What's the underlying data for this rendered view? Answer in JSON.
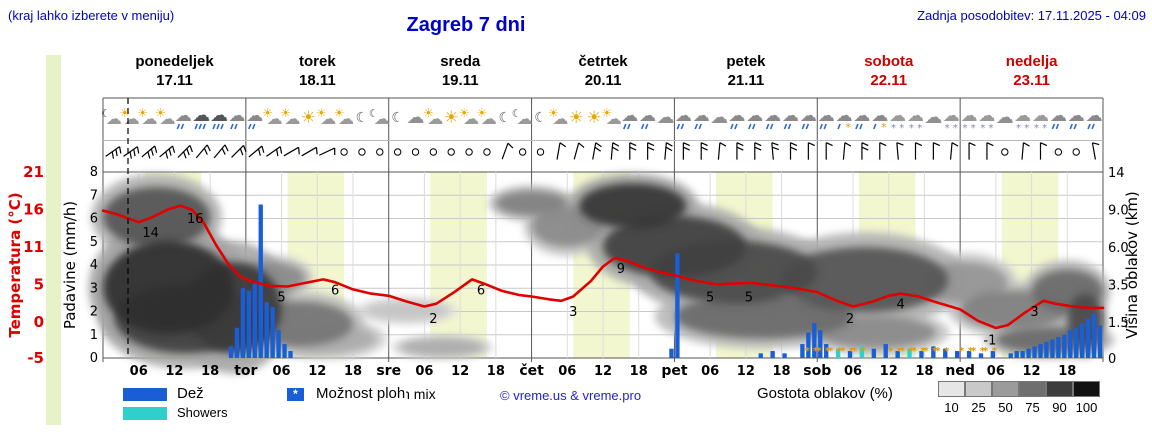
{
  "header": {
    "hint": "(kraj lahko izberete v meniju)",
    "title": "Zagreb 7 dni",
    "updated": "Zadnja posodobitev: 17.11.2025 - 04:09"
  },
  "days": [
    {
      "name": "ponedeljek",
      "date": "17.11",
      "color": "#000000"
    },
    {
      "name": "torek",
      "date": "18.11",
      "color": "#000000"
    },
    {
      "name": "sreda",
      "date": "19.11",
      "color": "#000000"
    },
    {
      "name": "četrtek",
      "date": "20.11",
      "color": "#000000"
    },
    {
      "name": "petek",
      "date": "21.11",
      "color": "#000000"
    },
    {
      "name": "sobota",
      "date": "22.11",
      "color": "#cc0000"
    },
    {
      "name": "nedelja",
      "date": "23.11",
      "color": "#cc0000"
    }
  ],
  "axes": {
    "temp": {
      "title": "Temperatura (°C)",
      "color": "#dd0000",
      "ticks": [
        "21",
        "16",
        "11",
        "5",
        "0",
        "-5"
      ]
    },
    "precip": {
      "title": "Padavine (mm/h)",
      "ticks": [
        "8",
        "7",
        "6",
        "5",
        "4",
        "3",
        "2",
        "1",
        "0"
      ]
    },
    "cloud": {
      "title": "Višina oblakov (km)",
      "ticks": [
        "14",
        "9.0",
        "6.0",
        "3.5",
        "1.5",
        "0"
      ]
    },
    "x": {
      "hour_labels": [
        "06",
        "12",
        "18"
      ],
      "day_abbr": [
        "tor",
        "sre",
        "čet",
        "pet",
        "sob",
        "ned"
      ]
    }
  },
  "legend": {
    "rain": "Dež",
    "showers": "Showers",
    "chance": "Možnost ploh",
    "frozen": "frozen mix",
    "star": "*",
    "cloud_density": "Gostota oblakov (%)",
    "scale": [
      "10",
      "25",
      "50",
      "75",
      "90",
      "100"
    ],
    "scale_colors": [
      "#e6e6e6",
      "#c9c9c9",
      "#9b9b9b",
      "#6f6f6f",
      "#3d3d3d",
      "#121212"
    ],
    "rain_color": "#1a5ed6",
    "showers_color": "#2fd0cc"
  },
  "credit": "© vreme.us & vreme.pro",
  "chart_data": {
    "type": "meteogram: line = temperature (°C), bars = precipitation (mm/h), gray shading = cloud density by height (km), icons = weather per 3h, barbs = wind",
    "x_range_hours": [
      0,
      168
    ],
    "now_hour": 4.2,
    "day_start_hour": 7,
    "day_end_hour": 16.5,
    "temp_axis_range": [
      -5,
      21
    ],
    "precip_axis_range": [
      0,
      8
    ],
    "cloud_height_ticks_km": [
      0,
      1.5,
      3.5,
      6,
      9,
      14
    ],
    "temperature": [
      [
        0,
        15.6
      ],
      [
        2,
        15.2
      ],
      [
        4,
        14.6
      ],
      [
        6,
        14.0
      ],
      [
        8,
        14.6
      ],
      [
        11,
        15.8
      ],
      [
        13,
        16.3
      ],
      [
        15,
        15.7
      ],
      [
        17,
        13.8
      ],
      [
        19,
        10.8
      ],
      [
        21,
        8.2
      ],
      [
        23,
        6.4
      ],
      [
        25,
        5.7
      ],
      [
        28,
        5.1
      ],
      [
        31,
        5.0
      ],
      [
        34,
        5.5
      ],
      [
        37,
        6.0
      ],
      [
        39,
        5.6
      ],
      [
        42,
        4.6
      ],
      [
        45,
        4.0
      ],
      [
        48,
        3.7
      ],
      [
        51,
        2.9
      ],
      [
        54,
        2.2
      ],
      [
        56,
        2.6
      ],
      [
        59,
        4.2
      ],
      [
        62,
        6.0
      ],
      [
        64,
        5.4
      ],
      [
        67,
        4.4
      ],
      [
        70,
        3.8
      ],
      [
        72,
        3.6
      ],
      [
        75,
        3.2
      ],
      [
        77,
        3.0
      ],
      [
        79,
        3.6
      ],
      [
        82,
        5.8
      ],
      [
        84,
        7.8
      ],
      [
        86,
        9.0
      ],
      [
        88,
        8.6
      ],
      [
        91,
        7.6
      ],
      [
        94,
        6.9
      ],
      [
        96,
        6.6
      ],
      [
        99,
        5.9
      ],
      [
        103,
        5.3
      ],
      [
        106,
        5.4
      ],
      [
        109,
        5.5
      ],
      [
        112,
        5.2
      ],
      [
        116,
        4.8
      ],
      [
        120,
        4.2
      ],
      [
        123,
        3.1
      ],
      [
        126,
        2.2
      ],
      [
        129,
        2.8
      ],
      [
        132,
        3.7
      ],
      [
        134,
        4.0
      ],
      [
        137,
        3.6
      ],
      [
        140,
        2.8
      ],
      [
        144,
        1.8
      ],
      [
        147,
        0.2
      ],
      [
        150,
        -0.8
      ],
      [
        152,
        -0.4
      ],
      [
        155,
        1.4
      ],
      [
        158,
        3.0
      ],
      [
        160,
        2.6
      ],
      [
        163,
        2.2
      ],
      [
        166,
        2.0
      ],
      [
        168,
        2.0
      ]
    ],
    "temp_labels": [
      [
        8,
        14
      ],
      [
        15.5,
        16
      ],
      [
        30,
        5
      ],
      [
        39,
        6
      ],
      [
        55.5,
        2
      ],
      [
        63.5,
        6
      ],
      [
        79,
        3
      ],
      [
        87,
        9
      ],
      [
        102,
        5
      ],
      [
        108.5,
        5
      ],
      [
        125.5,
        2
      ],
      [
        134,
        4
      ],
      [
        149,
        -1
      ],
      [
        156.5,
        3
      ]
    ],
    "precip": [
      [
        21,
        0.5
      ],
      [
        22,
        1.3
      ],
      [
        23,
        3.0
      ],
      [
        24,
        2.9
      ],
      [
        25,
        3.2
      ],
      [
        26,
        6.6
      ],
      [
        27,
        2.4
      ],
      [
        28,
        2.2
      ],
      [
        29,
        1.2
      ],
      [
        30,
        0.6
      ],
      [
        31,
        0.3
      ],
      [
        95,
        0.4
      ],
      [
        96,
        4.5
      ],
      [
        110,
        0.2
      ],
      [
        112,
        0.3
      ],
      [
        114,
        0.2
      ],
      [
        117,
        0.6
      ],
      [
        118,
        1.1
      ],
      [
        119,
        1.5
      ],
      [
        120,
        1.2
      ],
      [
        121,
        0.6
      ],
      [
        123,
        0.4,
        "showers"
      ],
      [
        125,
        0.3
      ],
      [
        127,
        0.5,
        "showers"
      ],
      [
        129,
        0.4
      ],
      [
        131,
        0.6
      ],
      [
        133,
        0.3
      ],
      [
        135,
        0.4,
        "showers"
      ],
      [
        137,
        0.3
      ],
      [
        139,
        0.5
      ],
      [
        141,
        0.4
      ],
      [
        143,
        0.3
      ],
      [
        145,
        0.3
      ],
      [
        147,
        0.2
      ],
      [
        149,
        0.3
      ],
      [
        152,
        0.2
      ],
      [
        153,
        0.3
      ],
      [
        154,
        0.3
      ],
      [
        155,
        0.4
      ],
      [
        156,
        0.5
      ],
      [
        157,
        0.6
      ],
      [
        158,
        0.7
      ],
      [
        159,
        0.8
      ],
      [
        160,
        0.9
      ],
      [
        161,
        1.0
      ],
      [
        162,
        1.2
      ],
      [
        163,
        1.3
      ],
      [
        164,
        1.5
      ],
      [
        165,
        1.7
      ],
      [
        166,
        1.9
      ],
      [
        167,
        1.4
      ]
    ],
    "frozen_mix_hours": [
      119,
      121,
      123,
      125,
      127,
      133,
      135,
      137,
      139,
      141,
      145,
      147,
      149
    ],
    "clouds": [
      [
        0,
        18,
        6,
        12,
        0.7
      ],
      [
        0,
        22,
        1,
        6.5,
        0.88
      ],
      [
        2,
        26,
        0.2,
        3.5,
        0.8
      ],
      [
        14,
        30,
        0.2,
        5,
        0.82
      ],
      [
        22,
        34,
        3,
        5,
        0.45
      ],
      [
        24,
        42,
        0.5,
        2.6,
        0.55
      ],
      [
        30,
        46,
        0.2,
        1.4,
        0.3
      ],
      [
        44,
        58,
        1.6,
        2.6,
        0.18
      ],
      [
        50,
        64,
        0.1,
        0.8,
        0.3
      ],
      [
        66,
        78,
        8.5,
        11.5,
        0.5
      ],
      [
        72,
        84,
        6,
        9.5,
        0.45
      ],
      [
        80,
        98,
        7.5,
        12.5,
        0.85
      ],
      [
        84,
        108,
        4,
        8.5,
        0.8
      ],
      [
        92,
        120,
        2.5,
        6.5,
        0.75
      ],
      [
        96,
        126,
        0.8,
        3,
        0.6
      ],
      [
        114,
        142,
        2,
        6,
        0.7
      ],
      [
        120,
        140,
        0.4,
        1.8,
        0.45
      ],
      [
        138,
        152,
        2.5,
        5,
        0.4
      ],
      [
        144,
        162,
        1.2,
        3.2,
        0.5
      ],
      [
        150,
        168,
        0.2,
        1.3,
        0.6
      ],
      [
        156,
        168,
        2,
        4.5,
        0.6
      ],
      [
        162,
        168,
        0.5,
        3,
        0.75
      ]
    ],
    "icons": [
      "moon-cloud",
      "partly",
      "partly",
      "partly",
      "rain",
      "heavy-rain",
      "heavy-rain",
      "rain",
      "rain",
      "partly",
      "partly",
      "sun",
      "partly",
      "partly",
      "moon",
      "moon-cloud",
      "moon",
      "cloud",
      "partly",
      "sun",
      "partly",
      "partly",
      "moon",
      "moon-cloud",
      "moon",
      "partly",
      "sun",
      "sun",
      "partly",
      "rain",
      "rain",
      "cloud",
      "rain",
      "rain",
      "cloud",
      "rain",
      "rain",
      "rain",
      "rain",
      "rain",
      "rain",
      "sleet",
      "rain",
      "sleet",
      "snow",
      "snow",
      "cloud",
      "snow",
      "snow",
      "snow",
      "cloud",
      "snow",
      "snow",
      "rain",
      "rain",
      "rain"
    ],
    "wind": [
      [
        55,
        3
      ],
      [
        55,
        3
      ],
      [
        50,
        3
      ],
      [
        50,
        3
      ],
      [
        45,
        3
      ],
      [
        40,
        2
      ],
      [
        40,
        2
      ],
      [
        45,
        2
      ],
      [
        50,
        2
      ],
      [
        55,
        2
      ],
      [
        60,
        1
      ],
      [
        60,
        1
      ],
      [
        65,
        1
      ],
      null,
      null,
      null,
      null,
      null,
      null,
      null,
      null,
      null,
      [
        20,
        1
      ],
      null,
      null,
      [
        10,
        1
      ],
      [
        15,
        1
      ],
      [
        10,
        2
      ],
      [
        5,
        2
      ],
      [
        0,
        2
      ],
      [
        0,
        2
      ],
      [
        5,
        2
      ],
      [
        0,
        2
      ],
      [
        0,
        2
      ],
      [
        5,
        1
      ],
      [
        0,
        2
      ],
      [
        0,
        2
      ],
      [
        -5,
        2
      ],
      [
        0,
        2
      ],
      [
        0,
        1
      ],
      [
        0,
        1
      ],
      [
        5,
        1
      ],
      [
        0,
        2
      ],
      [
        0,
        1
      ],
      [
        -5,
        1
      ],
      [
        0,
        1
      ],
      [
        0,
        1
      ],
      [
        5,
        1
      ],
      [
        0,
        1
      ],
      [
        0,
        1
      ],
      null,
      [
        5,
        1
      ],
      [
        0,
        1
      ],
      null,
      null,
      [
        -10,
        1
      ]
    ]
  }
}
